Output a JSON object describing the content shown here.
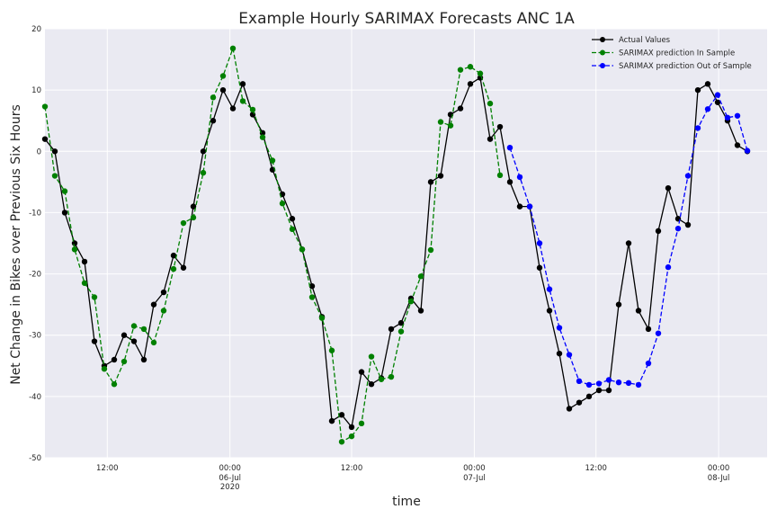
{
  "chart_data": {
    "type": "line",
    "title": "Example Hourly SARIMAX Forecasts ANC 1A",
    "xlabel": "time",
    "ylabel": "Net Change in Bikes over Previous Six Hours",
    "ylim": [
      -50,
      20
    ],
    "yticks": [
      -50,
      -40,
      -30,
      -20,
      -10,
      0,
      10,
      20
    ],
    "xlim_hours": [
      0,
      73
    ],
    "xticks": [
      {
        "label": "12:00",
        "sublabel": "",
        "hour": 6.3
      },
      {
        "label": "00:00",
        "sublabel": "06-Jul\n2020",
        "hour": 18.7
      },
      {
        "label": "12:00",
        "sublabel": "",
        "hour": 31.0
      },
      {
        "label": "00:00",
        "sublabel": "07-Jul",
        "hour": 43.4
      },
      {
        "label": "12:00",
        "sublabel": "",
        "hour": 55.7
      },
      {
        "label": "00:00",
        "sublabel": "08-Jul",
        "hour": 68.1
      }
    ],
    "grid": true,
    "legend_position": "top-right",
    "series": [
      {
        "name": "Actual Values",
        "color": "#000000",
        "dashed": false,
        "start_hour": 0,
        "values": [
          2,
          0,
          -10,
          -15,
          -18,
          -31,
          -35,
          -34,
          -30,
          -31,
          -34,
          -25,
          -23,
          -17,
          -19,
          -9,
          0,
          5,
          10,
          7,
          11,
          6,
          3,
          -3,
          -7,
          -11,
          -16,
          -22,
          -27,
          -44,
          -43,
          -45,
          -36,
          -38,
          -37,
          -29,
          -28,
          -24,
          -26,
          -5,
          -4,
          6,
          7,
          11,
          12,
          2,
          4,
          -5,
          -9,
          -9,
          -19,
          -26,
          -33,
          -42,
          -41,
          -40,
          -39,
          -39,
          -25,
          -15,
          -26,
          -29,
          -13,
          -6,
          -11,
          -12,
          10,
          11,
          8,
          5,
          1,
          0
        ]
      },
      {
        "name": "SARIMAX prediction In Sample",
        "color": "#008000",
        "dashed": true,
        "start_hour": 0,
        "values": [
          7.3,
          -4,
          -6.5,
          -16,
          -21.5,
          -23.8,
          -35.5,
          -38,
          -34.3,
          -28.5,
          -29,
          -31.2,
          -26,
          -19.2,
          -11.7,
          -10.8,
          -3.5,
          8.8,
          12.3,
          16.8,
          8.2,
          6.8,
          2.3,
          -1.5,
          -8.5,
          -12.7,
          -16,
          -23.8,
          -27.2,
          -32.5,
          -47.4,
          -46.5,
          -44.4,
          -33.5,
          -37.2,
          -36.8,
          -29.4,
          -24.5,
          -20.4,
          -16.1,
          4.8,
          4.2,
          13.3,
          13.8,
          12.7,
          7.8,
          -3.9
        ]
      },
      {
        "name": "SARIMAX prediction Out of Sample",
        "color": "#0000ff",
        "dashed": true,
        "start_hour": 47,
        "values": [
          0.6,
          -4.2,
          -9,
          -15,
          -22.5,
          -28.8,
          -33.2,
          -37.5,
          -38.1,
          -37.9,
          -37.3,
          -37.7,
          -37.8,
          -38.1,
          -34.6,
          -29.7,
          -18.9,
          -12.6,
          -4,
          3.8,
          6.9,
          9.2,
          5.5,
          5.8,
          0.1
        ]
      }
    ]
  }
}
